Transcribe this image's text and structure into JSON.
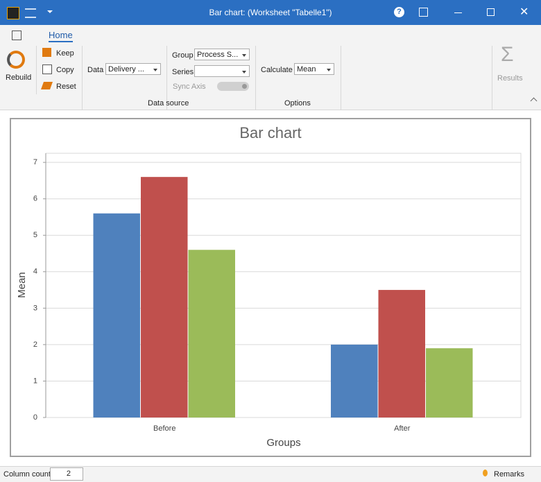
{
  "window": {
    "title": "Bar chart:  (Worksheet \"Tabelle1\")"
  },
  "ribbon": {
    "tab": "Home",
    "rebuild": "Rebuild",
    "keep": "Keep",
    "copy": "Copy",
    "reset": "Reset",
    "data_label": "Data",
    "data_value": "Delivery ...",
    "group_label": "Group",
    "group_value": "Process S...",
    "series_label": "Series",
    "sync_axis": "Sync Axis",
    "data_source": "Data source",
    "calculate_label": "Calculate",
    "calculate_value": "Mean",
    "options": "Options",
    "results": "Results"
  },
  "chart_data": {
    "type": "bar",
    "title": "Bar chart",
    "x_label": "Groups",
    "y_label": "Mean",
    "categories": [
      "Before",
      "After"
    ],
    "series": [
      {
        "color": "#4f81bd",
        "values": [
          5.6,
          2.0
        ]
      },
      {
        "color": "#c0504d",
        "values": [
          6.6,
          3.5
        ]
      },
      {
        "color": "#9bbb59",
        "values": [
          4.6,
          1.9
        ]
      }
    ],
    "ylim": [
      0,
      7.25
    ],
    "yticks": [
      0,
      1,
      2,
      3,
      4,
      5,
      6,
      7
    ],
    "grid": true
  },
  "status_bar": {
    "column_count_label": "Column count",
    "column_count": 2,
    "remarks": "Remarks"
  }
}
